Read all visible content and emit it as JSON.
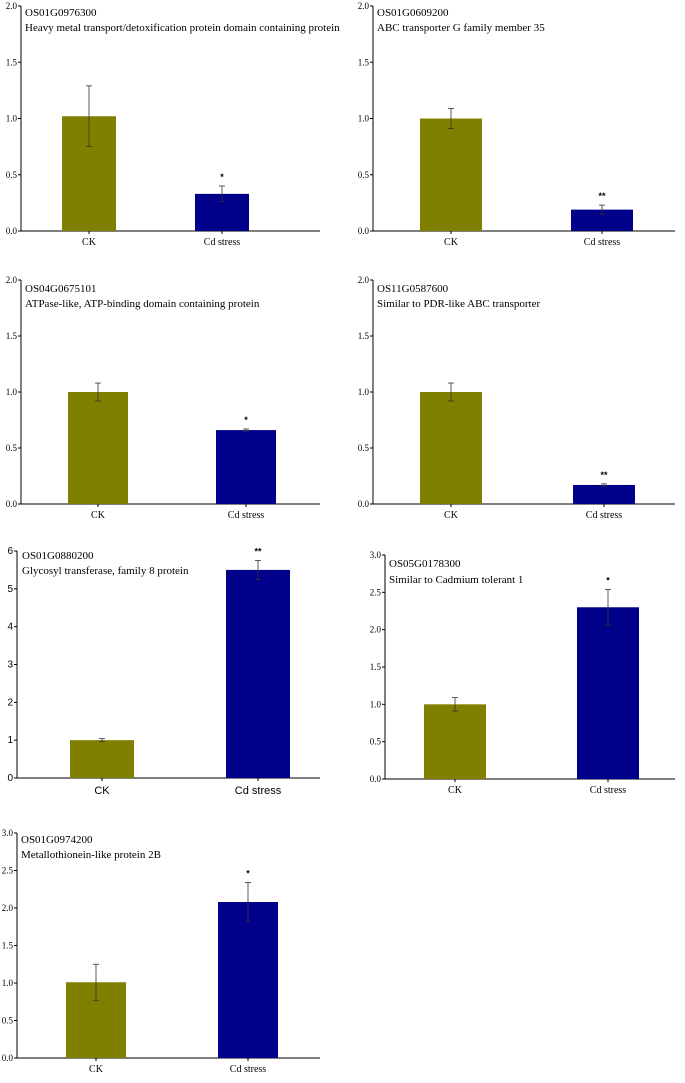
{
  "colors": {
    "ck": "#808000",
    "cd": "#00008b",
    "axis": "#000000"
  },
  "chart_data": [
    {
      "type": "bar",
      "gene_id": "OS01G0976300",
      "description": "Heavy metal transport/detoxification protein domain containing protein",
      "categories": [
        "CK",
        "Cd stress"
      ],
      "values": [
        1.02,
        0.33
      ],
      "errors": [
        0.27,
        0.07
      ],
      "significance": [
        "",
        "*"
      ],
      "ylim": [
        0,
        2.0
      ],
      "yticks": [
        "0.0",
        "0.5",
        "1.0",
        "1.5",
        "2.0"
      ],
      "xlabel": "",
      "ylabel": ""
    },
    {
      "type": "bar",
      "gene_id": "OS01G0609200",
      "description": "ABC transporter G family member 35",
      "categories": [
        "CK",
        "Cd stress"
      ],
      "values": [
        1.0,
        0.19
      ],
      "errors": [
        0.09,
        0.04
      ],
      "significance": [
        "",
        "**"
      ],
      "ylim": [
        0,
        2.0
      ],
      "yticks": [
        "0.0",
        "0.5",
        "1.0",
        "1.5",
        "2.0"
      ],
      "xlabel": "",
      "ylabel": ""
    },
    {
      "type": "bar",
      "gene_id": "OS04G0675101",
      "description": "ATPase-like, ATP-binding domain containing protein",
      "categories": [
        "CK",
        "Cd stress"
      ],
      "values": [
        1.0,
        0.66
      ],
      "errors": [
        0.08,
        0.01
      ],
      "significance": [
        "",
        "*"
      ],
      "ylim": [
        0,
        2.0
      ],
      "yticks": [
        "0.0",
        "0.5",
        "1.0",
        "1.5",
        "2.0"
      ],
      "xlabel": "",
      "ylabel": ""
    },
    {
      "type": "bar",
      "gene_id": "OS11G0587600",
      "description": "Similar to PDR-like ABC transporter",
      "categories": [
        "CK",
        "Cd stress"
      ],
      "values": [
        1.0,
        0.17
      ],
      "errors": [
        0.08,
        0.01
      ],
      "significance": [
        "",
        "**"
      ],
      "ylim": [
        0,
        2.0
      ],
      "yticks": [
        "0.0",
        "0.5",
        "1.0",
        "1.5",
        "2.0"
      ],
      "xlabel": "",
      "ylabel": ""
    },
    {
      "type": "bar",
      "gene_id": "OS01G0880200",
      "description": "Glycosyl transferase, family 8 protein",
      "categories": [
        "CK",
        "Cd stress"
      ],
      "values": [
        1.0,
        5.5
      ],
      "errors": [
        0.04,
        0.25
      ],
      "significance": [
        "",
        "**"
      ],
      "ylim": [
        0,
        6
      ],
      "yticks": [
        "0",
        "1",
        "2",
        "3",
        "4",
        "5",
        "6"
      ],
      "xlabel": "",
      "ylabel": ""
    },
    {
      "type": "bar",
      "gene_id": "OS05G0178300",
      "description": "Similar to Cadmium tolerant 1",
      "categories": [
        "CK",
        "Cd stress"
      ],
      "values": [
        1.0,
        2.3
      ],
      "errors": [
        0.09,
        0.24
      ],
      "significance": [
        "",
        "*"
      ],
      "ylim": [
        0,
        3.0
      ],
      "yticks": [
        "0.0",
        "0.5",
        "1.0",
        "1.5",
        "2.0",
        "2.5",
        "3.0"
      ],
      "xlabel": "",
      "ylabel": ""
    },
    {
      "type": "bar",
      "gene_id": "OS01G0974200",
      "description": "Metallothionein-like protein 2B",
      "categories": [
        "CK",
        "Cd stress"
      ],
      "values": [
        1.01,
        2.08
      ],
      "errors": [
        0.24,
        0.26
      ],
      "significance": [
        "",
        "*"
      ],
      "ylim": [
        0,
        3.0
      ],
      "yticks": [
        "0.0",
        "0.5",
        "1.0",
        "1.5",
        "2.0",
        "2.5",
        "3.0"
      ],
      "xlabel": "",
      "ylabel": ""
    }
  ]
}
